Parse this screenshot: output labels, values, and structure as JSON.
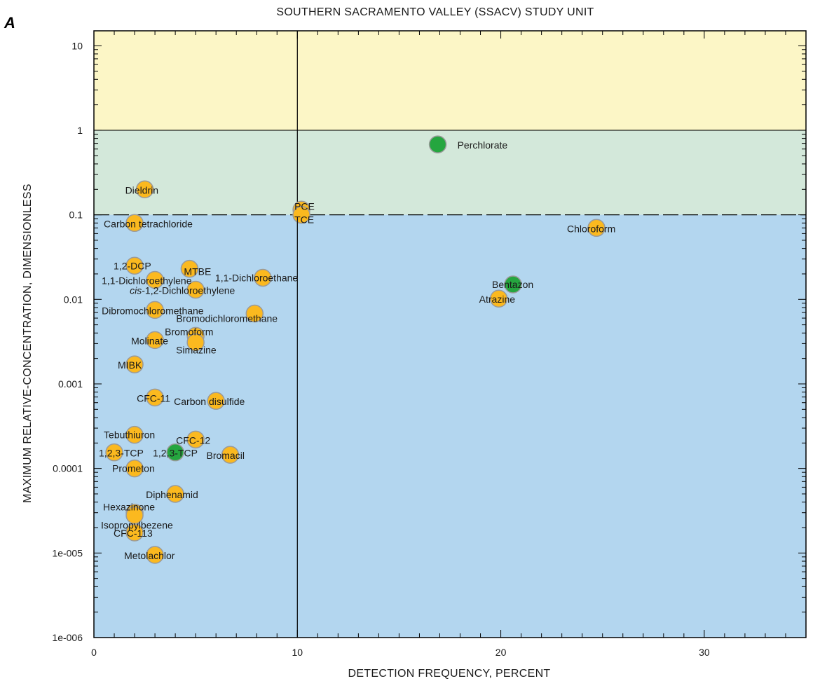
{
  "chart_data": {
    "type": "scatter",
    "panel_letter": "A",
    "title": "SOUTHERN SACRAMENTO VALLEY (SSACV) STUDY UNIT",
    "xlabel": "DETECTION FREQUENCY, PERCENT",
    "ylabel": "MAXIMUM RELATIVE-CONCENTRATION, DIMENSIONLESS",
    "x_scale": "linear",
    "y_scale": "log",
    "xlim": [
      0,
      35
    ],
    "ylim": [
      1e-06,
      15
    ],
    "x_ticks": [
      {
        "value": 0,
        "label": "0"
      },
      {
        "value": 10,
        "label": "10"
      },
      {
        "value": 20,
        "label": "20"
      },
      {
        "value": 30,
        "label": "30"
      }
    ],
    "y_ticks": [
      {
        "value": 1e-06,
        "label": "1e-006"
      },
      {
        "value": 1e-05,
        "label": "1e-005"
      },
      {
        "value": 0.0001,
        "label": "0.0001"
      },
      {
        "value": 0.001,
        "label": "0.001"
      },
      {
        "value": 0.01,
        "label": "0.01"
      },
      {
        "value": 0.1,
        "label": "0.1"
      },
      {
        "value": 1,
        "label": "1"
      },
      {
        "value": 10,
        "label": "10"
      }
    ],
    "bands": [
      {
        "from": 1,
        "to": 15,
        "color": "#fcf6c6"
      },
      {
        "from": 0.1,
        "to": 1,
        "color": "#d3e8da"
      },
      {
        "from": 1e-06,
        "to": 0.1,
        "color": "#b3d6ef"
      }
    ],
    "reference_lines": [
      {
        "axis": "y",
        "value": 1,
        "style": "solid"
      },
      {
        "axis": "y",
        "value": 0.1,
        "style": "dashed"
      },
      {
        "axis": "x",
        "value": 10,
        "style": "solid"
      }
    ],
    "colors": {
      "orange": "#fbb91f",
      "green": "#25a63f",
      "outline": "#9a9a9a"
    },
    "points": [
      {
        "label": "Perchlorate",
        "x": 16.9,
        "y": 0.68,
        "color": "green",
        "dx": 28,
        "dy": 6,
        "anchor": "start"
      },
      {
        "label": "Dieldrin",
        "x": 2.5,
        "y": 0.2,
        "color": "orange",
        "dx": -28,
        "dy": 6,
        "anchor": "start"
      },
      {
        "label": "PCE",
        "x": 10.2,
        "y": 0.115,
        "color": "orange",
        "dx": -10,
        "dy": 0,
        "anchor": "start"
      },
      {
        "label": "TCE",
        "x": 10.2,
        "y": 0.1,
        "color": "orange",
        "dx": -10,
        "dy": 12,
        "anchor": "start"
      },
      {
        "label": "Carbon tetrachloride",
        "x": 2.0,
        "y": 0.08,
        "color": "orange",
        "dx": -44,
        "dy": 6,
        "anchor": "start"
      },
      {
        "label": "Chloroform",
        "x": 24.7,
        "y": 0.07,
        "color": "orange",
        "dx": -42,
        "dy": 6,
        "anchor": "start"
      },
      {
        "label": "1,2-DCP",
        "x": 2.0,
        "y": 0.025,
        "color": "orange",
        "dx": -30,
        "dy": 5,
        "anchor": "start"
      },
      {
        "label": "MTBE",
        "x": 4.7,
        "y": 0.023,
        "color": "orange",
        "dx": -8,
        "dy": 9,
        "anchor": "start"
      },
      {
        "label": "1,1-Dichloroethylene",
        "x": 3.0,
        "y": 0.017,
        "color": "orange",
        "dx": -76,
        "dy": 6,
        "anchor": "start"
      },
      {
        "label": "1,1-Dichloroethane",
        "x": 8.3,
        "y": 0.018,
        "color": "orange",
        "dx": -68,
        "dy": 5,
        "anchor": "start"
      },
      {
        "label": "Bentazon",
        "x": 20.6,
        "y": 0.015,
        "color": "green",
        "dx": -30,
        "dy": 5,
        "anchor": "start"
      },
      {
        "label": "cis-1,2-Dichloroethylene",
        "x": 5.0,
        "y": 0.013,
        "color": "orange",
        "dx": -94,
        "dy": 6,
        "anchor": "start",
        "italic_prefix": "cis"
      },
      {
        "label": "Atrazine",
        "x": 19.9,
        "y": 0.0102,
        "color": "orange",
        "dx": -28,
        "dy": 6,
        "anchor": "start"
      },
      {
        "label": "Dibromochloromethane",
        "x": 3.0,
        "y": 0.0075,
        "color": "orange",
        "dx": -76,
        "dy": 6,
        "anchor": "start"
      },
      {
        "label": "Bromodichloromethane",
        "x": 7.9,
        "y": 0.0068,
        "color": "orange",
        "dx": -112,
        "dy": 12,
        "anchor": "start"
      },
      {
        "label": "Bromoform",
        "x": 5.0,
        "y": 0.0037,
        "color": "orange",
        "dx": -44,
        "dy": -1,
        "anchor": "start"
      },
      {
        "label": "Molinate",
        "x": 3.0,
        "y": 0.0033,
        "color": "orange",
        "dx": -34,
        "dy": 6,
        "anchor": "start"
      },
      {
        "label": "Simazine",
        "x": 5.0,
        "y": 0.0031,
        "color": "orange",
        "dx": -28,
        "dy": 16,
        "anchor": "start"
      },
      {
        "label": "MIBK",
        "x": 2.0,
        "y": 0.0017,
        "color": "orange",
        "dx": -24,
        "dy": 6,
        "anchor": "start"
      },
      {
        "label": "CFC-11",
        "x": 3.0,
        "y": 0.00069,
        "color": "orange",
        "dx": -26,
        "dy": 6,
        "anchor": "start"
      },
      {
        "label": "Carbon disulfide",
        "x": 6.0,
        "y": 0.00063,
        "color": "orange",
        "dx": -60,
        "dy": 6,
        "anchor": "start"
      },
      {
        "label": "Tebuthiuron",
        "x": 2.0,
        "y": 0.00025,
        "color": "orange",
        "dx": -44,
        "dy": 5,
        "anchor": "start"
      },
      {
        "label": "CFC-12",
        "x": 5.0,
        "y": 0.00022,
        "color": "orange",
        "dx": -28,
        "dy": 6,
        "anchor": "start"
      },
      {
        "label": "1,2,3-TCP",
        "x": 1.0,
        "y": 0.000155,
        "color": "orange",
        "dx": -22,
        "dy": 6,
        "anchor": "start"
      },
      {
        "label": "1,2,3-TCP",
        "x": 4.0,
        "y": 0.000155,
        "color": "green",
        "dx": -32,
        "dy": 6,
        "anchor": "start"
      },
      {
        "label": "Bromacil",
        "x": 6.7,
        "y": 0.000145,
        "color": "orange",
        "dx": -34,
        "dy": 6,
        "anchor": "start"
      },
      {
        "label": "Prometon",
        "x": 2.0,
        "y": 0.0001,
        "color": "orange",
        "dx": -32,
        "dy": 5,
        "anchor": "start"
      },
      {
        "label": "Diphenamid",
        "x": 4.0,
        "y": 5e-05,
        "color": "orange",
        "dx": -42,
        "dy": 6,
        "anchor": "start"
      },
      {
        "label": "Hexazinone",
        "x": 2.0,
        "y": 3e-05,
        "color": "orange",
        "dx": -45,
        "dy": -3,
        "anchor": "start"
      },
      {
        "label": "Isopropylbezene",
        "x": 2.0,
        "y": 2.8e-05,
        "color": "orange",
        "dx": -48,
        "dy": 19,
        "anchor": "start"
      },
      {
        "label": "CFC-113",
        "x": 2.0,
        "y": 1.75e-05,
        "color": "orange",
        "dx": -30,
        "dy": 6,
        "anchor": "start"
      },
      {
        "label": "Metolachlor",
        "x": 3.0,
        "y": 9.5e-06,
        "color": "orange",
        "dx": -44,
        "dy": 6,
        "anchor": "start"
      }
    ]
  }
}
